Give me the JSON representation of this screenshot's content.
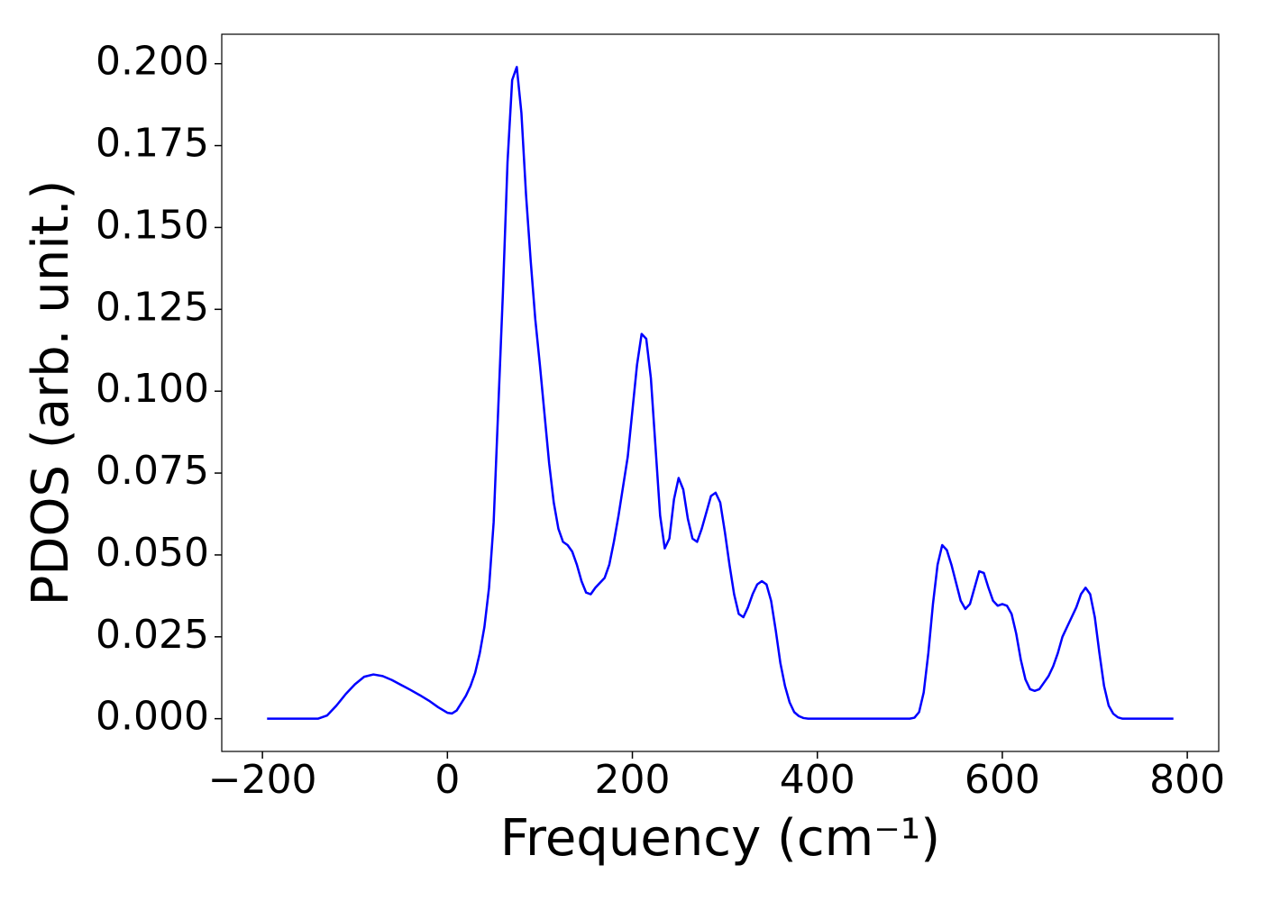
{
  "chart_data": {
    "type": "line",
    "xlabel": "Frequency (cm⁻¹)",
    "ylabel": "PDOS (arb. unit.)",
    "xlim": [
      -244,
      834
    ],
    "ylim": [
      -0.01,
      0.209
    ],
    "xticks": [
      {
        "value": -200,
        "label": "−200"
      },
      0,
      200,
      400,
      600,
      800
    ],
    "yticks": [
      {
        "value": 0,
        "label": "0.000"
      },
      {
        "value": 0.025,
        "label": "0.025"
      },
      {
        "value": 0.05,
        "label": "0.050"
      },
      {
        "value": 0.075,
        "label": "0.075"
      },
      {
        "value": 0.1,
        "label": "0.100"
      },
      {
        "value": 0.125,
        "label": "0.125"
      },
      {
        "value": 0.15,
        "label": "0.150"
      },
      {
        "value": 0.175,
        "label": "0.175"
      },
      {
        "value": 0.2,
        "label": "0.200"
      }
    ],
    "grid": false,
    "x": [
      -195,
      -140,
      -130,
      -120,
      -110,
      -100,
      -90,
      -80,
      -70,
      -60,
      -50,
      -40,
      -30,
      -20,
      -10,
      0,
      5,
      10,
      20,
      25,
      30,
      35,
      40,
      45,
      50,
      55,
      60,
      65,
      70,
      75,
      80,
      85,
      90,
      95,
      100,
      105,
      110,
      115,
      120,
      125,
      130,
      135,
      140,
      145,
      150,
      155,
      160,
      170,
      175,
      180,
      185,
      190,
      195,
      200,
      205,
      210,
      215,
      220,
      225,
      230,
      235,
      240,
      245,
      250,
      255,
      260,
      265,
      270,
      275,
      280,
      285,
      290,
      295,
      300,
      305,
      310,
      315,
      320,
      325,
      330,
      335,
      340,
      345,
      350,
      355,
      360,
      365,
      370,
      375,
      380,
      385,
      390,
      500,
      505,
      510,
      515,
      520,
      525,
      530,
      535,
      540,
      545,
      550,
      555,
      560,
      565,
      570,
      575,
      580,
      585,
      590,
      595,
      600,
      605,
      610,
      615,
      620,
      625,
      630,
      635,
      640,
      645,
      650,
      655,
      660,
      665,
      670,
      675,
      680,
      685,
      690,
      695,
      700,
      705,
      710,
      715,
      720,
      725,
      730,
      785
    ],
    "series": [
      {
        "name": "PDOS",
        "color": "#0000ff",
        "values": [
          0,
          0,
          0.001,
          0.004,
          0.0075,
          0.0105,
          0.0128,
          0.0135,
          0.013,
          0.0118,
          0.0103,
          0.0088,
          0.0072,
          0.0055,
          0.0035,
          0.0018,
          0.0016,
          0.0025,
          0.007,
          0.01,
          0.014,
          0.02,
          0.028,
          0.04,
          0.06,
          0.095,
          0.13,
          0.17,
          0.195,
          0.199,
          0.185,
          0.16,
          0.14,
          0.122,
          0.108,
          0.093,
          0.078,
          0.066,
          0.058,
          0.054,
          0.053,
          0.051,
          0.047,
          0.042,
          0.0385,
          0.038,
          0.04,
          0.043,
          0.047,
          0.054,
          0.062,
          0.071,
          0.08,
          0.094,
          0.108,
          0.1175,
          0.116,
          0.104,
          0.083,
          0.062,
          0.052,
          0.055,
          0.067,
          0.0735,
          0.07,
          0.061,
          0.055,
          0.054,
          0.058,
          0.063,
          0.068,
          0.069,
          0.066,
          0.057,
          0.047,
          0.038,
          0.032,
          0.031,
          0.034,
          0.038,
          0.041,
          0.042,
          0.041,
          0.036,
          0.027,
          0.017,
          0.01,
          0.005,
          0.002,
          0.0008,
          0.0002,
          0,
          0,
          0.0003,
          0.002,
          0.008,
          0.02,
          0.035,
          0.047,
          0.053,
          0.0515,
          0.047,
          0.0415,
          0.036,
          0.0335,
          0.035,
          0.04,
          0.045,
          0.0445,
          0.04,
          0.036,
          0.0345,
          0.035,
          0.0345,
          0.032,
          0.026,
          0.018,
          0.012,
          0.009,
          0.0085,
          0.009,
          0.011,
          0.013,
          0.016,
          0.02,
          0.025,
          0.028,
          0.031,
          0.034,
          0.038,
          0.04,
          0.038,
          0.031,
          0.02,
          0.01,
          0.004,
          0.0015,
          0.0004,
          0,
          0
        ]
      }
    ]
  }
}
